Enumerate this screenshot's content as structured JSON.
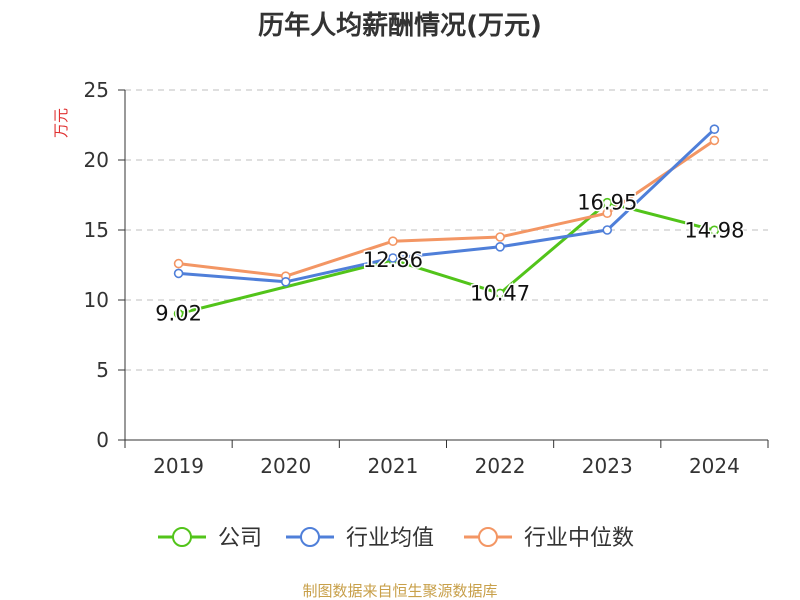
{
  "chart_data": {
    "type": "line",
    "title": "历年人均薪酬情况(万元)",
    "ylabel": "万元",
    "xlabel": "",
    "categories": [
      "2019",
      "2020",
      "2021",
      "2022",
      "2023",
      "2024"
    ],
    "ylim": [
      0,
      25
    ],
    "yticks": [
      0,
      5,
      10,
      15,
      20,
      25
    ],
    "grid": "horizontal-dashed",
    "legend_position": "bottom",
    "series": [
      {
        "name": "公司",
        "color": "#52c41a",
        "values": [
          9.02,
          null,
          12.86,
          10.47,
          16.95,
          14.98
        ],
        "data_labels": [
          "9.02",
          "",
          "12.86",
          "10.47",
          "16.95",
          "14.98"
        ]
      },
      {
        "name": "行业均值",
        "color": "#4f7fd9",
        "values": [
          11.9,
          11.3,
          13.0,
          13.8,
          15.0,
          22.2
        ],
        "data_labels": []
      },
      {
        "name": "行业中位数",
        "color": "#f39664",
        "values": [
          12.6,
          11.7,
          14.2,
          14.5,
          16.2,
          21.4
        ],
        "data_labels": []
      }
    ]
  },
  "footer": {
    "source": "制图数据来自恒生聚源数据库"
  }
}
